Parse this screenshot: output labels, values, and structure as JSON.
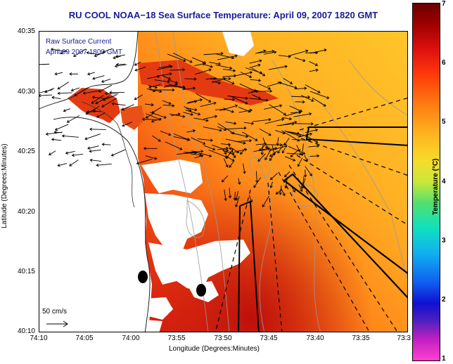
{
  "title": "RU COOL  NOAA−18  Sea Surface Temperature:  April 09, 2007 1820 GMT",
  "overlay": {
    "line1": "Raw Surface Current",
    "line2": "April 09 2007 1800 GMT"
  },
  "axes": {
    "ylabel": "Latitude (Degrees:Minutes)",
    "xlabel": "Longitude (Degrees:Minutes)",
    "yticks": [
      "40:35",
      "40:30",
      "40:25",
      "40:20",
      "40:15",
      "40:10"
    ],
    "xticks": [
      "74:10",
      "74:05",
      "74:00",
      "73:55",
      "73:50",
      "73:45",
      "73:40",
      "73:35",
      "73:3"
    ]
  },
  "scale": {
    "label": "50 cm/s"
  },
  "colorbar": {
    "label": "Temperature (°C)",
    "ticks": [
      "7",
      "6",
      "5",
      "4",
      "3",
      "2",
      "1"
    ],
    "range": [
      1,
      7
    ]
  },
  "colors": {
    "title": "#1a1a9a",
    "warm": "#ff8c1a",
    "hot": "#e02010",
    "land": "#ffffff"
  }
}
